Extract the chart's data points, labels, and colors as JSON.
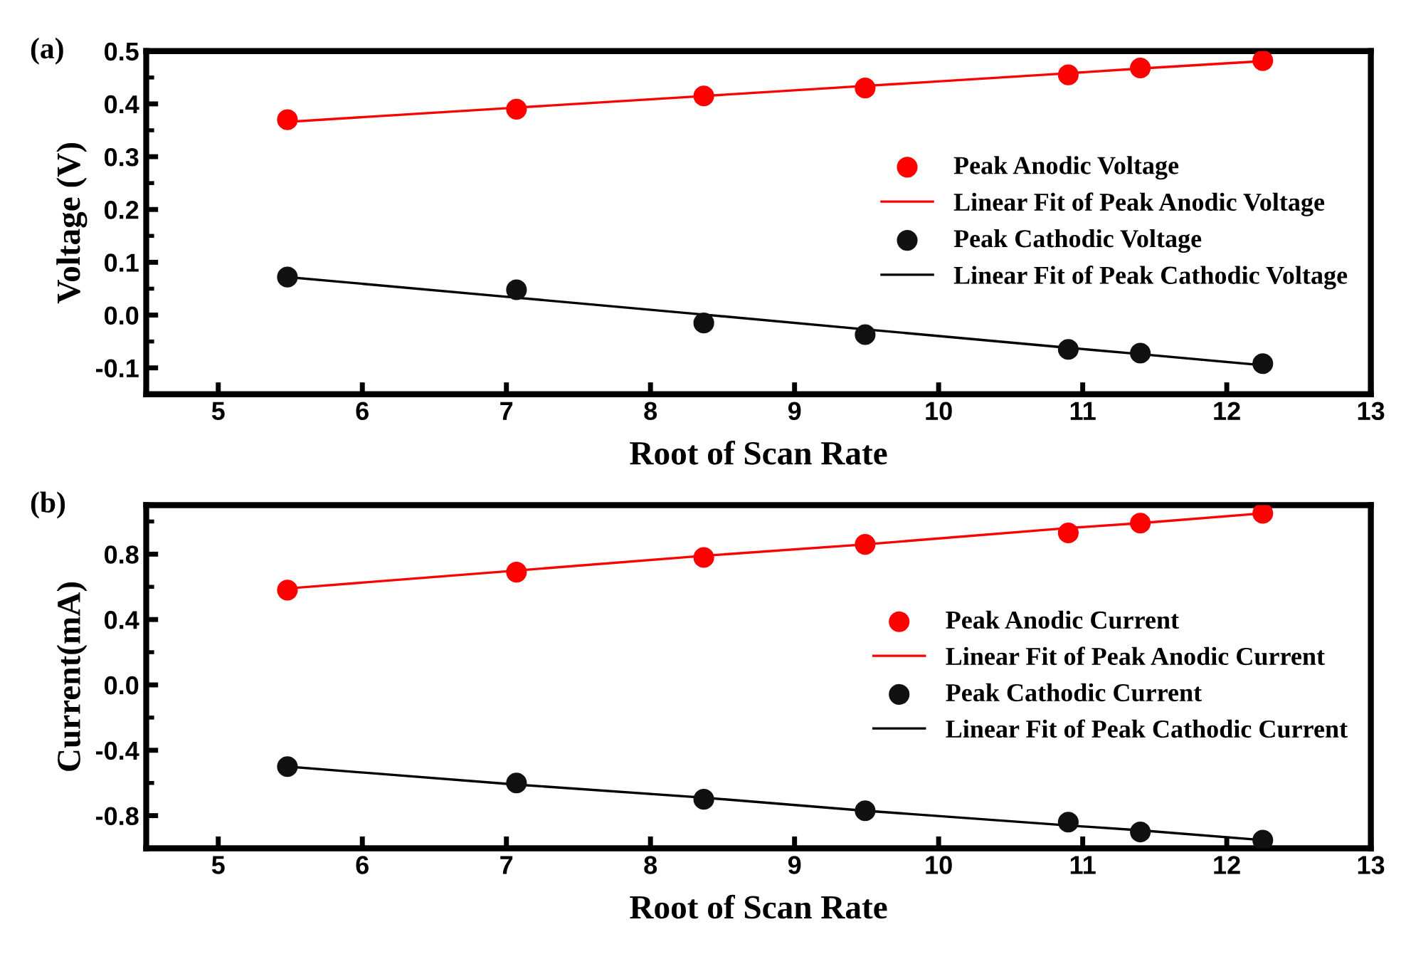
{
  "chart_data": [
    {
      "type": "scatter",
      "xlabel": "Root of Scan Rate",
      "ylabel": "Voltage (V)",
      "annotations": [
        "(a)"
      ],
      "x": [
        5.48,
        7.07,
        8.37,
        9.49,
        10.9,
        11.4,
        12.25
      ],
      "xlim": [
        4.5,
        13
      ],
      "xticks": [
        5,
        6,
        7,
        8,
        9,
        10,
        11,
        12,
        13
      ],
      "ylim": [
        -0.15,
        0.5
      ],
      "yticks": [
        {
          "value": -0.1,
          "label": "-0.1"
        },
        {
          "value": 0,
          "label": "0.0"
        },
        0.1,
        0.2,
        0.3,
        0.4,
        0.5
      ],
      "legend": "right",
      "grid": false,
      "series": [
        {
          "name": "Peak Anodic Voltage",
          "marker": "circle",
          "color": "#ff0000",
          "values": [
            0.37,
            0.39,
            0.415,
            0.43,
            0.455,
            0.468,
            0.482
          ]
        },
        {
          "name": "Linear Fit of Peak Anodic Voltage",
          "type": "line",
          "color": "#ff0000",
          "values": [
            0.366,
            0.393,
            0.415,
            0.434,
            0.458,
            0.467,
            0.481
          ]
        },
        {
          "name": "Peak Cathodic Voltage",
          "marker": "circle",
          "color": "#111111",
          "values": [
            0.072,
            0.048,
            -0.015,
            -0.037,
            -0.065,
            -0.072,
            -0.092
          ]
        },
        {
          "name": "Linear Fit of Peak Cathodic Voltage",
          "type": "line",
          "color": "#000000",
          "values": [
            0.072,
            0.033,
            0.001,
            -0.027,
            -0.062,
            -0.074,
            -0.095
          ]
        }
      ]
    },
    {
      "type": "scatter",
      "xlabel": "Root of Scan Rate",
      "ylabel": "Current(mA)",
      "annotations": [
        "(b)"
      ],
      "x": [
        5.48,
        7.07,
        8.37,
        9.49,
        10.9,
        11.4,
        12.25
      ],
      "xlim": [
        4.5,
        13
      ],
      "xticks": [
        5,
        6,
        7,
        8,
        9,
        10,
        11,
        12,
        13
      ],
      "ylim": [
        -1.0,
        1.1
      ],
      "yticks": [
        {
          "value": -0.8,
          "label": "-0.8"
        },
        {
          "value": -0.4,
          "label": "-0.4"
        },
        {
          "value": 0,
          "label": "0.0"
        },
        0.4,
        0.8
      ],
      "legend": "right",
      "grid": false,
      "series": [
        {
          "name": "Peak Anodic Current",
          "marker": "circle",
          "color": "#ff0000",
          "values": [
            0.58,
            0.69,
            0.78,
            0.86,
            0.93,
            0.99,
            1.05
          ]
        },
        {
          "name": "Linear Fit of Peak Anodic Current",
          "type": "line",
          "color": "#ff0000",
          "values": [
            0.59,
            0.7,
            0.79,
            0.86,
            0.96,
            0.99,
            1.05
          ]
        },
        {
          "name": "Peak Cathodic Current",
          "marker": "circle",
          "color": "#111111",
          "values": [
            -0.5,
            -0.6,
            -0.7,
            -0.77,
            -0.84,
            -0.9,
            -0.95
          ]
        },
        {
          "name": "Linear Fit of Peak Cathodic Current",
          "type": "line",
          "color": "#000000",
          "values": [
            -0.5,
            -0.61,
            -0.69,
            -0.77,
            -0.86,
            -0.89,
            -0.95
          ]
        }
      ]
    }
  ]
}
